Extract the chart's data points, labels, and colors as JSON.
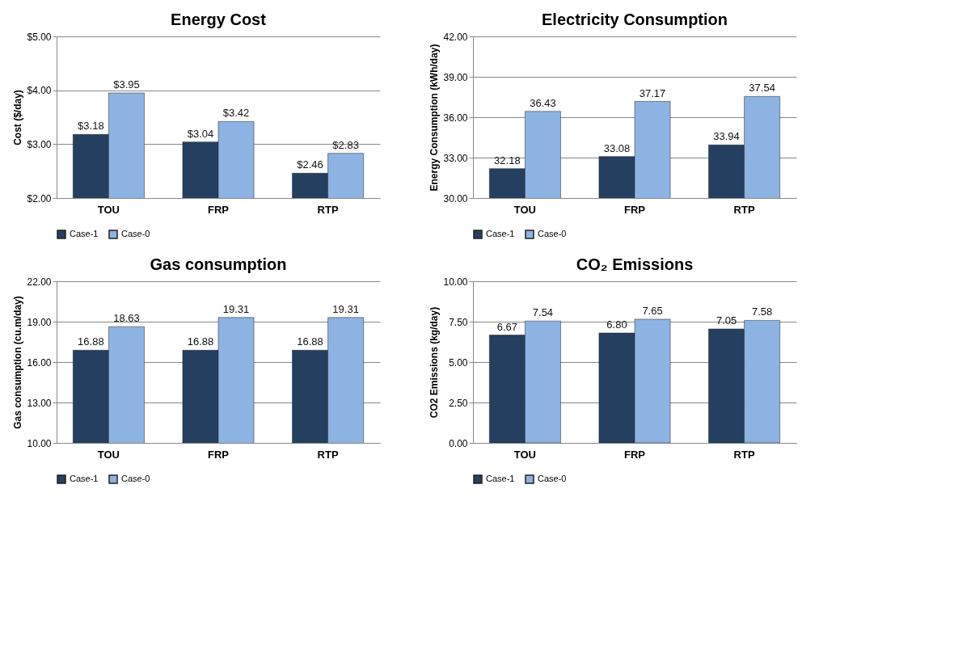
{
  "chart_data": [
    {
      "type": "bar",
      "title": "Energy Cost",
      "ylabel": "Cost ($/day)",
      "categories": [
        "TOU",
        "FRP",
        "RTP"
      ],
      "series": [
        {
          "name": "Case-1",
          "color": "#243f60",
          "values": [
            3.18,
            3.04,
            2.46
          ],
          "value_labels": [
            "$3.18",
            "$3.04",
            "$2.46"
          ]
        },
        {
          "name": "Case-0",
          "color": "#8db3e2",
          "values": [
            3.95,
            3.42,
            2.83
          ],
          "value_labels": [
            "$3.95",
            "$3.42",
            "$2.83"
          ]
        }
      ],
      "ylim": [
        2,
        5
      ],
      "yticks": [
        {
          "value": 2,
          "label": "$2.00"
        },
        {
          "value": 3,
          "label": "$3.00"
        },
        {
          "value": 4,
          "label": "$4.00"
        },
        {
          "value": 5,
          "label": "$5.00"
        }
      ],
      "grid": "y",
      "legend": "bottom"
    },
    {
      "type": "bar",
      "title": "Electricity Consumption",
      "ylabel": "Energy Consumption  (kWh/day)",
      "categories": [
        "TOU",
        "FRP",
        "RTP"
      ],
      "series": [
        {
          "name": "Case-1",
          "color": "#243f60",
          "values": [
            32.18,
            33.08,
            33.94
          ],
          "value_labels": [
            "32.18",
            "33.08",
            "33.94"
          ]
        },
        {
          "name": "Case-0",
          "color": "#8db3e2",
          "values": [
            36.43,
            37.17,
            37.54
          ],
          "value_labels": [
            "36.43",
            "37.17",
            "37.54"
          ]
        }
      ],
      "ylim": [
        30,
        42
      ],
      "yticks": [
        {
          "value": 30,
          "label": "30.00"
        },
        {
          "value": 33,
          "label": "33.00"
        },
        {
          "value": 36,
          "label": "36.00"
        },
        {
          "value": 39,
          "label": "39.00"
        },
        {
          "value": 42,
          "label": "42.00"
        }
      ],
      "grid": "y",
      "legend": "bottom"
    },
    {
      "type": "bar",
      "title": "Gas consumption",
      "ylabel": "Gas consumption (cu.m/day)",
      "categories": [
        "TOU",
        "FRP",
        "RTP"
      ],
      "series": [
        {
          "name": "Case-1",
          "color": "#243f60",
          "values": [
            16.88,
            16.88,
            16.88
          ],
          "value_labels": [
            "16.88",
            "16.88",
            "16.88"
          ]
        },
        {
          "name": "Case-0",
          "color": "#8db3e2",
          "values": [
            18.63,
            19.31,
            19.31
          ],
          "value_labels": [
            "18.63",
            "19.31",
            "19.31"
          ]
        }
      ],
      "ylim": [
        10,
        22
      ],
      "yticks": [
        {
          "value": 10,
          "label": "10.00"
        },
        {
          "value": 13,
          "label": "13.00"
        },
        {
          "value": 16,
          "label": "16.00"
        },
        {
          "value": 19,
          "label": "19.00"
        },
        {
          "value": 22,
          "label": "22.00"
        }
      ],
      "grid": "y",
      "legend": "bottom"
    },
    {
      "type": "bar",
      "title": "CO₂ Emissions",
      "ylabel": "CO2 Emissions  (kg/day)",
      "categories": [
        "TOU",
        "FRP",
        "RTP"
      ],
      "series": [
        {
          "name": "Case-1",
          "color": "#243f60",
          "values": [
            6.67,
            6.8,
            7.05
          ],
          "value_labels": [
            "6.67",
            "6.80",
            "7.05"
          ]
        },
        {
          "name": "Case-0",
          "color": "#8db3e2",
          "values": [
            7.54,
            7.65,
            7.58
          ],
          "value_labels": [
            "7.54",
            "7.65",
            "7.58"
          ]
        }
      ],
      "ylim": [
        0,
        10
      ],
      "yticks": [
        {
          "value": 0,
          "label": "0.00"
        },
        {
          "value": 2.5,
          "label": "2.50"
        },
        {
          "value": 5,
          "label": "5.00"
        },
        {
          "value": 7.5,
          "label": "7.50"
        },
        {
          "value": 10,
          "label": "10.00"
        }
      ],
      "grid": "y",
      "legend": "bottom"
    }
  ]
}
